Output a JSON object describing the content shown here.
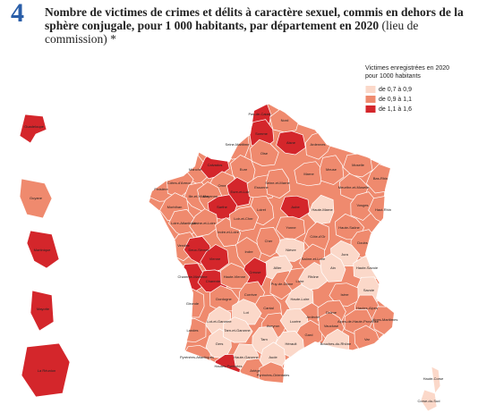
{
  "header": {
    "number": "4",
    "title_bold": "Nombre de victimes de crimes et délits à caractère sexuel, commis en dehors de la sphère conjugale, pour 1 000 habitants, par département en 2020",
    "title_normal": "(lieu de commission) *"
  },
  "legend": {
    "title": "Victimes enregistrées en 2020 pour 1000 habitants",
    "items": [
      {
        "label": "de 0,7 à 0,9",
        "color": "#fbd8c9"
      },
      {
        "label": "de 0,9 à 1,1",
        "color": "#ef8a6e"
      },
      {
        "label": "de 1,1 à 1,6",
        "color": "#d4262b"
      }
    ]
  },
  "departements": [
    {
      "nom": "Pas-de-Calais",
      "classe": "de 1,1 à 1,6"
    },
    {
      "nom": "Nord",
      "classe": "de 0,9 à 1,1"
    },
    {
      "nom": "Somme",
      "classe": "de 1,1 à 1,6"
    },
    {
      "nom": "Aisne",
      "classe": "de 1,1 à 1,6"
    },
    {
      "nom": "Seine-Maritime",
      "classe": "de 0,9 à 1,1"
    },
    {
      "nom": "Oise",
      "classe": "de 0,9 à 1,1"
    },
    {
      "nom": "Ardennes",
      "classe": "de 0,9 à 1,1"
    },
    {
      "nom": "Manche",
      "classe": "de 0,9 à 1,1"
    },
    {
      "nom": "Calvados",
      "classe": "de 1,1 à 1,6"
    },
    {
      "nom": "Eure",
      "classe": "de 0,9 à 1,1"
    },
    {
      "nom": "Marne",
      "classe": "de 0,9 à 1,1"
    },
    {
      "nom": "Meuse",
      "classe": "de 0,9 à 1,1"
    },
    {
      "nom": "Moselle",
      "classe": "de 0,9 à 1,1"
    },
    {
      "nom": "Bas-Rhin",
      "classe": "de 0,9 à 1,1"
    },
    {
      "nom": "Finistère",
      "classe": "de 0,9 à 1,1"
    },
    {
      "nom": "Côtes-d'Armor",
      "classe": "de 0,9 à 1,1"
    },
    {
      "nom": "Ille-et-Vilaine",
      "classe": "de 0,9 à 1,1"
    },
    {
      "nom": "Orne",
      "classe": "de 0,9 à 1,1"
    },
    {
      "nom": "Eure-et-Loir",
      "classe": "de 1,1 à 1,6"
    },
    {
      "nom": "Essonne",
      "classe": "de 0,9 à 1,1"
    },
    {
      "nom": "Seine-et-Marne",
      "classe": "de 0,9 à 1,1"
    },
    {
      "nom": "Aube",
      "classe": "de 1,1 à 1,6"
    },
    {
      "nom": "Haute-Marne",
      "classe": "de 0,7 à 0,9"
    },
    {
      "nom": "Meurthe-et-Moselle",
      "classe": "de 0,9 à 1,1"
    },
    {
      "nom": "Vosges",
      "classe": "de 0,9 à 1,1"
    },
    {
      "nom": "Haut-Rhin",
      "classe": "de 0,9 à 1,1"
    },
    {
      "nom": "Morbihan",
      "classe": "de 0,9 à 1,1"
    },
    {
      "nom": "Mayenne",
      "classe": "de 0,9 à 1,1"
    },
    {
      "nom": "Sarthe",
      "classe": "de 1,1 à 1,6"
    },
    {
      "nom": "Loiret",
      "classe": "de 0,9 à 1,1"
    },
    {
      "nom": "Yonne",
      "classe": "de 0,9 à 1,1"
    },
    {
      "nom": "Côte-d'Or",
      "classe": "de 0,9 à 1,1"
    },
    {
      "nom": "Haute-Saône",
      "classe": "de 0,9 à 1,1"
    },
    {
      "nom": "Doubs",
      "classe": "de 0,9 à 1,1"
    },
    {
      "nom": "Loire-Atlantique",
      "classe": "de 0,9 à 1,1"
    },
    {
      "nom": "Maine-et-Loire",
      "classe": "de 0,9 à 1,1"
    },
    {
      "nom": "Indre-et-Loire",
      "classe": "de 0,9 à 1,1"
    },
    {
      "nom": "Loir-et-Cher",
      "classe": "de 0,9 à 1,1"
    },
    {
      "nom": "Cher",
      "classe": "de 0,9 à 1,1"
    },
    {
      "nom": "Nièvre",
      "classe": "de 0,7 à 0,9"
    },
    {
      "nom": "Saône-et-Loire",
      "classe": "de 0,9 à 1,1"
    },
    {
      "nom": "Jura",
      "classe": "de 0,7 à 0,9"
    },
    {
      "nom": "Vendée",
      "classe": "de 0,9 à 1,1"
    },
    {
      "nom": "Deux-Sèvres",
      "classe": "de 1,1 à 1,6"
    },
    {
      "nom": "Vienne",
      "classe": "de 1,1 à 1,6"
    },
    {
      "nom": "Indre",
      "classe": "de 0,9 à 1,1"
    },
    {
      "nom": "Allier",
      "classe": "de 0,7 à 0,9"
    },
    {
      "nom": "Charente-Maritime",
      "classe": "de 1,1 à 1,6"
    },
    {
      "nom": "Charente",
      "classe": "de 1,1 à 1,6"
    },
    {
      "nom": "Creuse",
      "classe": "de 1,1 à 1,6"
    },
    {
      "nom": "Haute-Vienne",
      "classe": "de 0,9 à 1,1"
    },
    {
      "nom": "Puy-de-Dôme",
      "classe": "de 0,9 à 1,1"
    },
    {
      "nom": "Loire",
      "classe": "de 0,9 à 1,1"
    },
    {
      "nom": "Rhône",
      "classe": "de 0,7 à 0,9"
    },
    {
      "nom": "Ain",
      "classe": "de 0,7 à 0,9"
    },
    {
      "nom": "Haute-Savoie",
      "classe": "de 0,7 à 0,9"
    },
    {
      "nom": "Savoie",
      "classe": "de 0,7 à 0,9"
    },
    {
      "nom": "Isère",
      "classe": "de 0,9 à 1,1"
    },
    {
      "nom": "Gironde",
      "classe": "de 0,9 à 1,1"
    },
    {
      "nom": "Dordogne",
      "classe": "de 0,9 à 1,1"
    },
    {
      "nom": "Corrèze",
      "classe": "de 0,9 à 1,1"
    },
    {
      "nom": "Cantal",
      "classe": "de 0,9 à 1,1"
    },
    {
      "nom": "Haute-Loire",
      "classe": "de 0,7 à 0,9"
    },
    {
      "nom": "Ardèche",
      "classe": "de 0,9 à 1,1"
    },
    {
      "nom": "Drôme",
      "classe": "de 0,9 à 1,1"
    },
    {
      "nom": "Hautes-Alpes",
      "classe": "de 0,9 à 1,1"
    },
    {
      "nom": "Landes",
      "classe": "de 0,9 à 1,1"
    },
    {
      "nom": "Lot-et-Garonne",
      "classe": "de 0,7 à 0,9"
    },
    {
      "nom": "Lot",
      "classe": "de 0,7 à 0,9"
    },
    {
      "nom": "Aveyron",
      "classe": "de 0,9 à 1,1"
    },
    {
      "nom": "Lozère",
      "classe": "de 0,7 à 0,9"
    },
    {
      "nom": "Gard",
      "classe": "de 0,9 à 1,1"
    },
    {
      "nom": "Vaucluse",
      "classe": "de 0,9 à 1,1"
    },
    {
      "nom": "Alpes-de-Haute-Provence",
      "classe": "de 0,9 à 1,1"
    },
    {
      "nom": "Alpes-Maritimes",
      "classe": "de 0,9 à 1,1"
    },
    {
      "nom": "Pyrénées-Atlantiques",
      "classe": "de 0,9 à 1,1"
    },
    {
      "nom": "Gers",
      "classe": "de 0,7 à 0,9"
    },
    {
      "nom": "Tarn-et-Garonne",
      "classe": "de 0,7 à 0,9"
    },
    {
      "nom": "Tarn",
      "classe": "de 0,7 à 0,9"
    },
    {
      "nom": "Hérault",
      "classe": "de 0,7 à 0,9"
    },
    {
      "nom": "Bouches-du-Rhône",
      "classe": "de 0,7 à 0,9"
    },
    {
      "nom": "Var",
      "classe": "de 0,9 à 1,1"
    },
    {
      "nom": "Hautes-Pyrénées",
      "classe": "de 1,1 à 1,6"
    },
    {
      "nom": "Haute-Garonne",
      "classe": "de 0,7 à 0,9"
    },
    {
      "nom": "Ariège",
      "classe": "de 0,9 à 1,1"
    },
    {
      "nom": "Aude",
      "classe": "de 0,7 à 0,9"
    },
    {
      "nom": "Pyrénées-Orientales",
      "classe": "de 0,9 à 1,1"
    },
    {
      "nom": "Haute-Corse",
      "classe": "de 0,7 à 0,9"
    },
    {
      "nom": "Corse-du-Sud",
      "classe": "de 0,7 à 0,9"
    },
    {
      "nom": "Guadeloupe",
      "classe": "de 1,1 à 1,6"
    },
    {
      "nom": "Guyane",
      "classe": "de 0,9 à 1,1"
    },
    {
      "nom": "Martinique",
      "classe": "de 1,1 à 1,6"
    },
    {
      "nom": "Mayotte",
      "classe": "de 1,1 à 1,6"
    },
    {
      "nom": "La Réunion",
      "classe": "de 1,1 à 1,6"
    }
  ]
}
